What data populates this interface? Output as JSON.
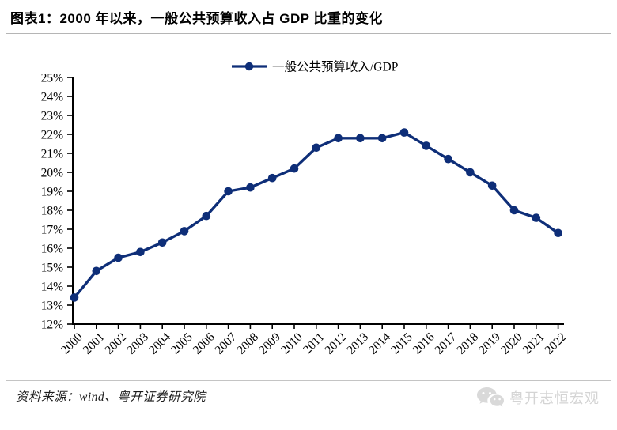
{
  "header": {
    "title": "图表1：2000 年以来，一般公共预算收入占 GDP 比重的变化"
  },
  "chart_data": {
    "type": "line",
    "title": "图表1：2000 年以来，一般公共预算收入占 GDP 比重的变化",
    "x": [
      "2000",
      "2001",
      "2002",
      "2003",
      "2004",
      "2005",
      "2006",
      "2007",
      "2008",
      "2009",
      "2010",
      "2011",
      "2012",
      "2013",
      "2014",
      "2015",
      "2016",
      "2017",
      "2018",
      "2019",
      "2020",
      "2021",
      "2022"
    ],
    "series": [
      {
        "name": "一般公共预算收入/GDP",
        "color": "#0e2e78",
        "values": [
          13.4,
          14.8,
          15.5,
          15.8,
          16.3,
          16.9,
          17.7,
          19.0,
          19.2,
          19.7,
          20.2,
          21.3,
          21.8,
          21.8,
          21.8,
          22.1,
          21.4,
          20.7,
          20.0,
          19.3,
          18.0,
          17.6,
          16.8
        ]
      }
    ],
    "xlabel": "",
    "ylabel": "",
    "ylim": [
      12,
      25
    ],
    "ytick_step": 1,
    "ytick_suffix": "%",
    "xtick_rotation": -45,
    "legend_position": "top-center",
    "grid": false,
    "marker": "circle",
    "axis_color": "#000000"
  },
  "footer": {
    "source": "资料来源：wind、粤开证券研究院",
    "watermark": "粤开志恒宏观",
    "watermark_icon": "wechat-icon"
  },
  "colors": {
    "accent": "#0e2e78",
    "header_rule": "#b5b5b5",
    "footer_rule": "#c4c4c4",
    "watermark": "#d4d4d4"
  }
}
